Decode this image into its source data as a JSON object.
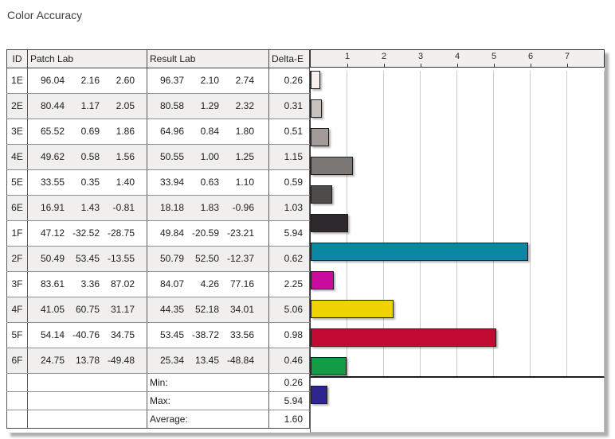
{
  "title": "Color Accuracy",
  "table": {
    "headers": {
      "id": "ID",
      "patch": "Patch Lab",
      "result": "Result Lab",
      "delta": "Delta-E"
    },
    "rows": [
      {
        "id": "1E",
        "patch": [
          "96.04",
          "2.16",
          "2.60"
        ],
        "result": [
          "96.37",
          "2.10",
          "2.74"
        ],
        "delta": "0.26"
      },
      {
        "id": "2E",
        "patch": [
          "80.44",
          "1.17",
          "2.05"
        ],
        "result": [
          "80.58",
          "1.29",
          "2.32"
        ],
        "delta": "0.31"
      },
      {
        "id": "3E",
        "patch": [
          "65.52",
          "0.69",
          "1.86"
        ],
        "result": [
          "64.96",
          "0.84",
          "1.80"
        ],
        "delta": "0.51"
      },
      {
        "id": "4E",
        "patch": [
          "49.62",
          "0.58",
          "1.56"
        ],
        "result": [
          "50.55",
          "1.00",
          "1.25"
        ],
        "delta": "1.15"
      },
      {
        "id": "5E",
        "patch": [
          "33.55",
          "0.35",
          "1.40"
        ],
        "result": [
          "33.94",
          "0.63",
          "1.10"
        ],
        "delta": "0.59"
      },
      {
        "id": "6E",
        "patch": [
          "16.91",
          "1.43",
          "-0.81"
        ],
        "result": [
          "18.18",
          "1.83",
          "-0.96"
        ],
        "delta": "1.03"
      },
      {
        "id": "1F",
        "patch": [
          "47.12",
          "-32.52",
          "-28.75"
        ],
        "result": [
          "49.84",
          "-20.59",
          "-23.21"
        ],
        "delta": "5.94"
      },
      {
        "id": "2F",
        "patch": [
          "50.49",
          "53.45",
          "-13.55"
        ],
        "result": [
          "50.79",
          "52.50",
          "-12.37"
        ],
        "delta": "0.62"
      },
      {
        "id": "3F",
        "patch": [
          "83.61",
          "3.36",
          "87.02"
        ],
        "result": [
          "84.07",
          "4.26",
          "77.16"
        ],
        "delta": "2.25"
      },
      {
        "id": "4F",
        "patch": [
          "41.05",
          "60.75",
          "31.17"
        ],
        "result": [
          "44.35",
          "52.18",
          "34.01"
        ],
        "delta": "5.06"
      },
      {
        "id": "5F",
        "patch": [
          "54.14",
          "-40.76",
          "34.75"
        ],
        "result": [
          "53.45",
          "-38.72",
          "33.56"
        ],
        "delta": "0.98"
      },
      {
        "id": "6F",
        "patch": [
          "24.75",
          "13.78",
          "-49.48"
        ],
        "result": [
          "25.34",
          "13.45",
          "-48.84"
        ],
        "delta": "0.46"
      }
    ],
    "stats": [
      {
        "label": "Min:",
        "value": "0.26"
      },
      {
        "label": "Max:",
        "value": "5.94"
      },
      {
        "label": "Average:",
        "value": "1.60"
      }
    ]
  },
  "chart_data": {
    "type": "bar",
    "orientation": "horizontal",
    "title": "Color Accuracy",
    "xlabel": "Delta-E",
    "categories": [
      "1E",
      "2E",
      "3E",
      "4E",
      "5E",
      "6E",
      "1F",
      "2F",
      "3F",
      "4F",
      "5F",
      "6F"
    ],
    "values": [
      0.26,
      0.31,
      0.51,
      1.15,
      0.59,
      1.03,
      5.94,
      0.62,
      2.25,
      5.06,
      0.98,
      0.46
    ],
    "bar_colors": [
      "#f8f0ed",
      "#c9c3bf",
      "#a39b97",
      "#7b7775",
      "#4e4b4a",
      "#2e292c",
      "#0c87a3",
      "#ca0c9c",
      "#eed202",
      "#c20b32",
      "#139b45",
      "#2e2590"
    ],
    "min": 0.26,
    "max": 5.94,
    "average": 1.6,
    "xlim": [
      0,
      8
    ],
    "xticks": [
      "1",
      "2",
      "3",
      "4",
      "5",
      "6",
      "7"
    ],
    "grid": true,
    "gridline_color": "#cbcbcb",
    "header_bg": "#f1f0ef",
    "alt_row_bg": "#f0efee"
  }
}
